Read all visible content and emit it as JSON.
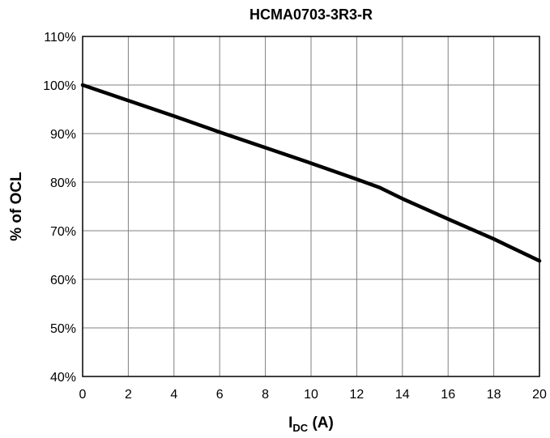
{
  "chart_data": {
    "type": "line",
    "title": "HCMA0703-3R3-R",
    "xlabel": "I",
    "xlabel_sub": "DC",
    "xlabel_unit": " (A)",
    "ylabel": "% of OCL",
    "xlim": [
      0,
      20
    ],
    "ylim": [
      40,
      110
    ],
    "grid": true,
    "x_ticks": [
      0,
      2,
      4,
      6,
      8,
      10,
      12,
      14,
      16,
      18,
      20
    ],
    "x_tick_labels": [
      "0",
      "2",
      "4",
      "6",
      "8",
      "10",
      "12",
      "14",
      "16",
      "18",
      "20"
    ],
    "y_ticks": [
      40,
      50,
      60,
      70,
      80,
      90,
      100,
      110
    ],
    "y_tick_labels": [
      "40%",
      "50%",
      "60%",
      "70%",
      "80%",
      "90%",
      "100%",
      "110%"
    ],
    "series": [
      {
        "x": [
          0,
          2,
          4,
          6,
          8,
          10,
          12,
          13,
          14,
          16,
          18,
          20
        ],
        "y": [
          100,
          96.8,
          93.6,
          90.3,
          87.1,
          83.9,
          80.6,
          78.9,
          76.6,
          72.4,
          68.3,
          63.8
        ]
      }
    ]
  }
}
